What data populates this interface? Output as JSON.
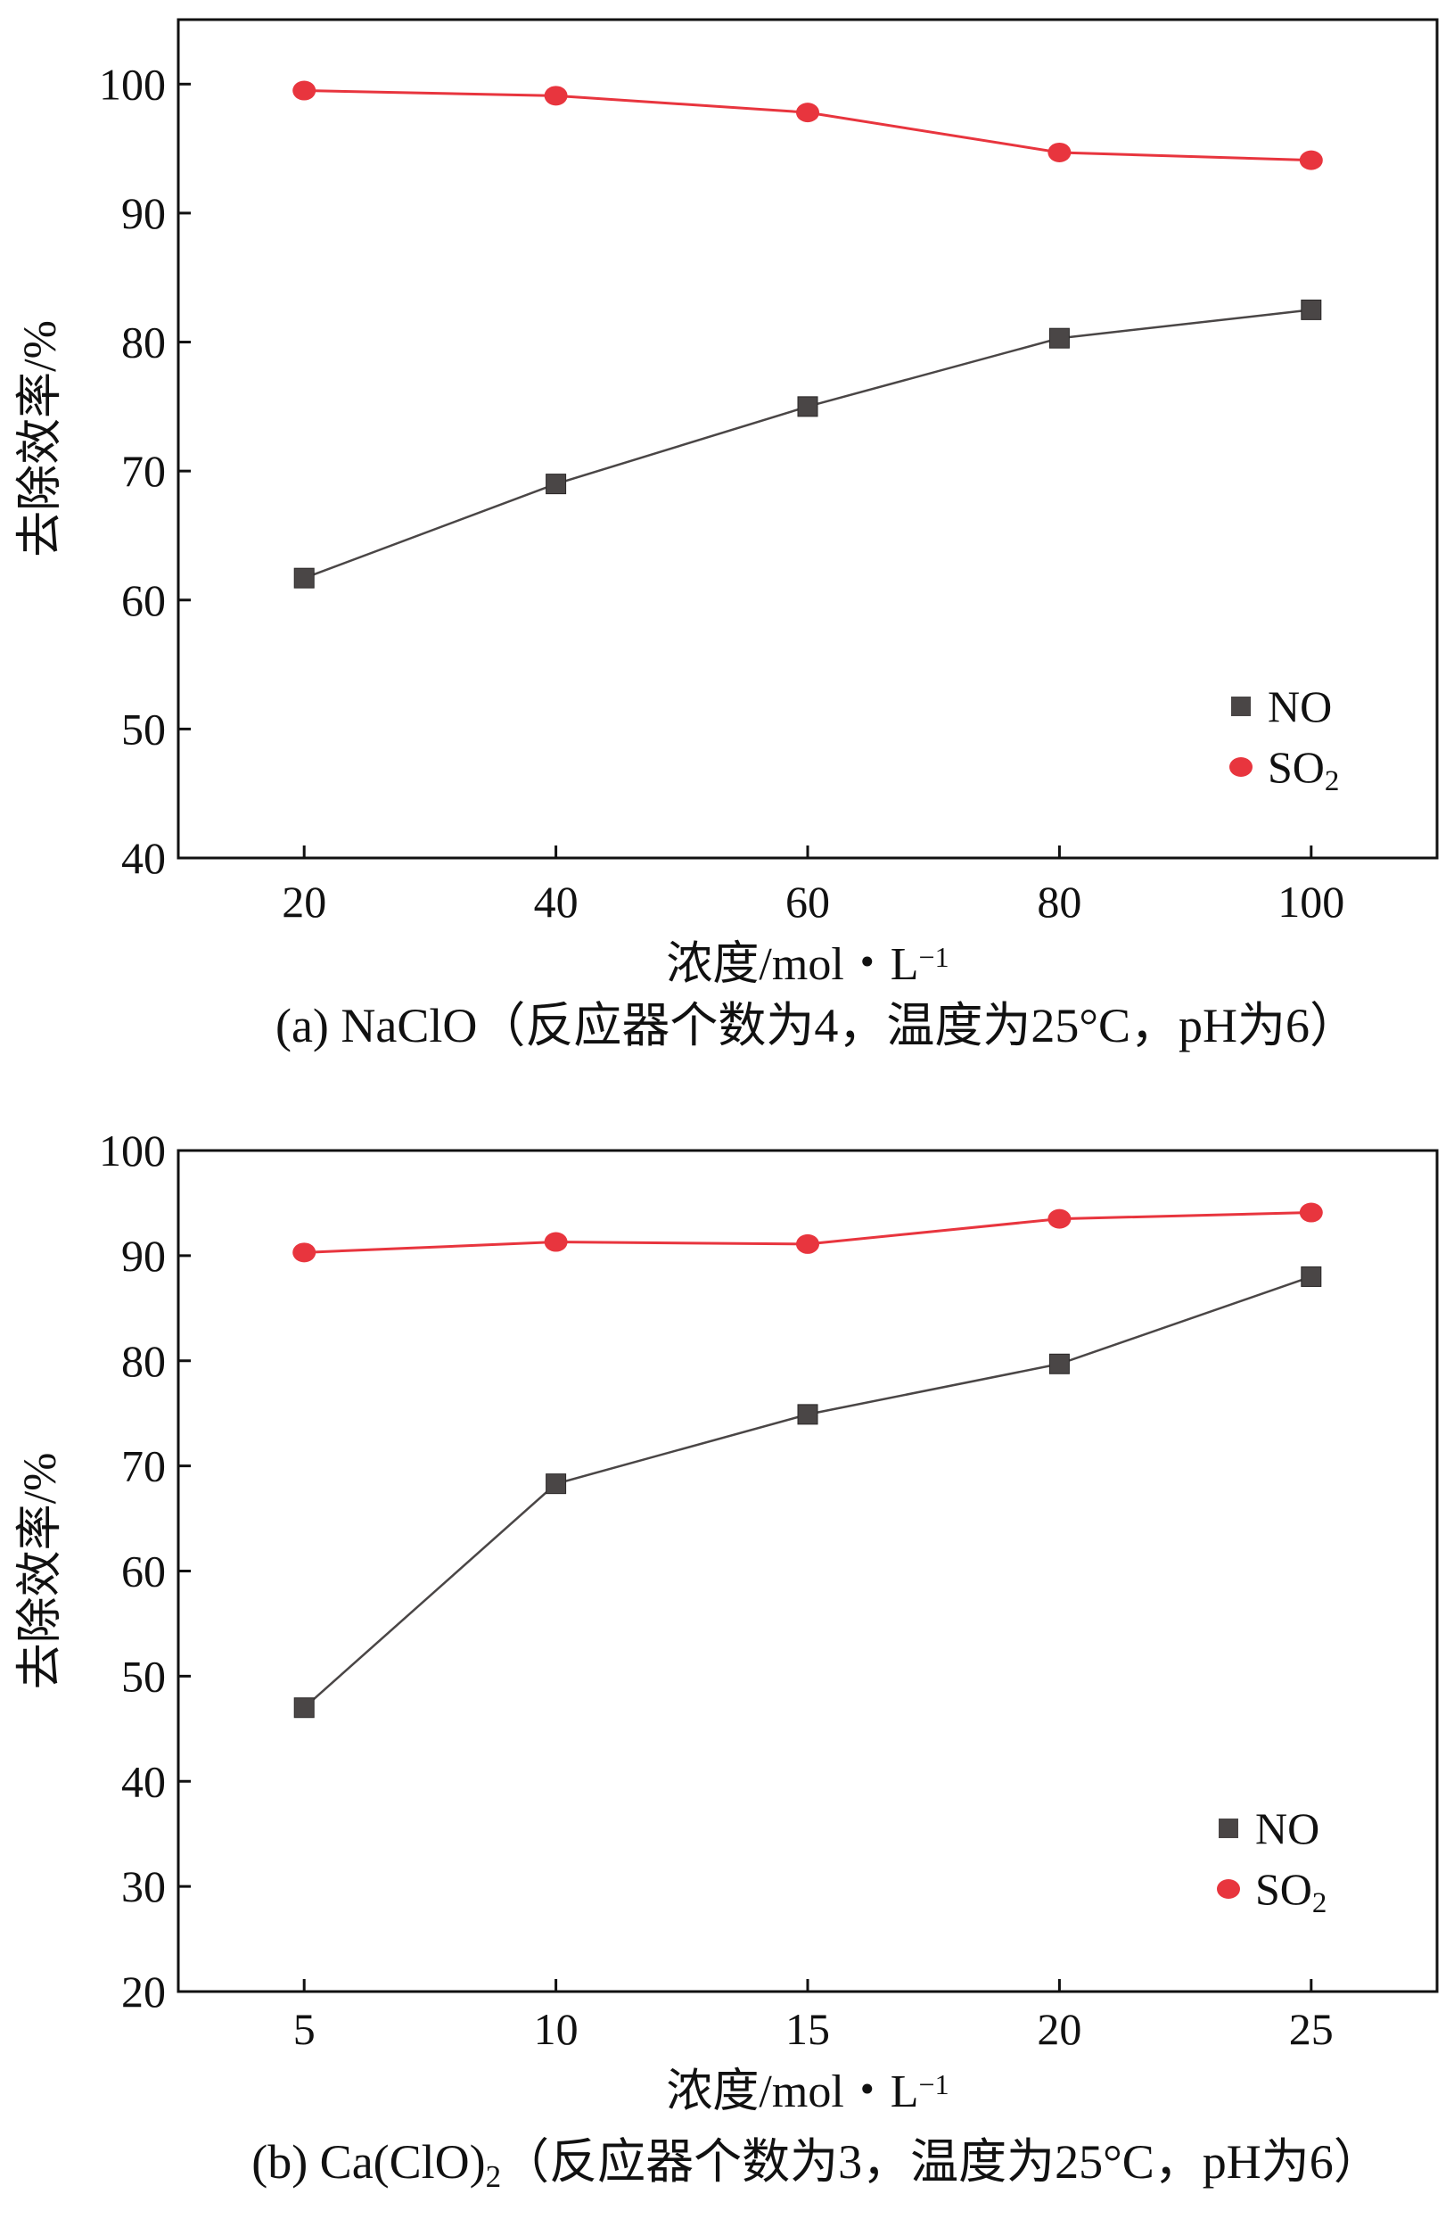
{
  "chart_data": [
    {
      "type": "line",
      "panel": "a",
      "title": "",
      "caption": "(a) NaClO（反应器个数为4，温度为25°C，pH为6）",
      "xlabel": "浓度/mol・L⁻¹",
      "ylabel": "去除效率/%",
      "x": [
        20,
        40,
        60,
        80,
        100
      ],
      "xticks": [
        "20",
        "40",
        "60",
        "80",
        "100"
      ],
      "xlim": [
        10,
        110
      ],
      "ylim": [
        40,
        105
      ],
      "yticks": [
        40,
        50,
        60,
        70,
        80,
        90,
        100
      ],
      "grid": false,
      "legend": "bottom-right",
      "series": [
        {
          "name": "NO",
          "marker": "square",
          "color": "#4a4646",
          "values": [
            61.7,
            69.0,
            75.0,
            80.3,
            82.5
          ]
        },
        {
          "name": "SO₂",
          "marker": "circle",
          "color": "#e8353e",
          "values": [
            99.5,
            99.1,
            97.8,
            94.7,
            94.1
          ]
        }
      ]
    },
    {
      "type": "line",
      "panel": "b",
      "title": "",
      "caption": "(b) Ca(ClO)₂（反应器个数为3，温度为25°C，pH为6）",
      "xlabel": "浓度/mol・L⁻¹",
      "ylabel": "去除效率/%",
      "x": [
        5,
        10,
        15,
        20,
        25
      ],
      "xticks": [
        "5",
        "10",
        "15",
        "20",
        "25"
      ],
      "xlim": [
        2.5,
        27.5
      ],
      "ylim": [
        20,
        100
      ],
      "yticks": [
        20,
        30,
        40,
        50,
        60,
        70,
        80,
        90,
        100
      ],
      "grid": false,
      "legend": "bottom-right",
      "series": [
        {
          "name": "NO",
          "marker": "square",
          "color": "#4a4646",
          "values": [
            47.0,
            68.3,
            74.9,
            79.7,
            88.0
          ]
        },
        {
          "name": "SO₂",
          "marker": "circle",
          "color": "#e8353e",
          "values": [
            90.3,
            91.3,
            91.1,
            93.5,
            94.1
          ]
        }
      ]
    }
  ]
}
